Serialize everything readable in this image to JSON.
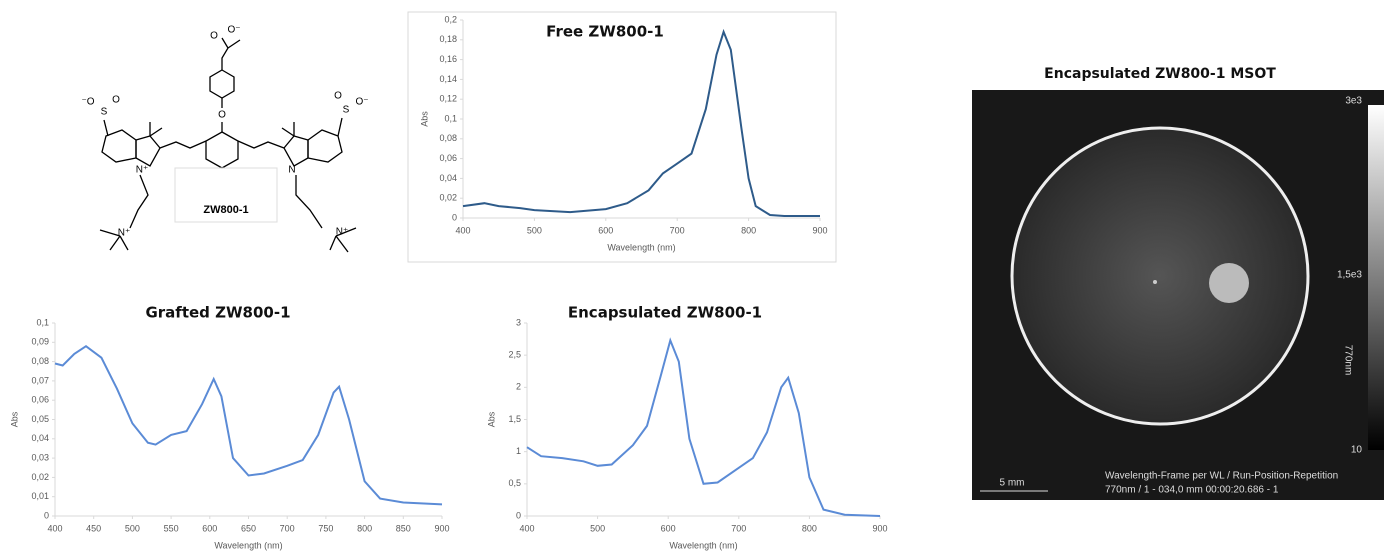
{
  "structure": {
    "labels": [
      "O⁻",
      "O",
      "O",
      "⁻O",
      "S",
      "O",
      "O",
      "S",
      "O⁻",
      "N⁺",
      "N",
      "N⁺",
      "ZW800-1"
    ]
  },
  "chart_data": [
    {
      "type": "line",
      "title": "Free ZW800-1",
      "x_label": "Wavelength (nm)",
      "y_label": "Abs",
      "color": "#2e5b8a",
      "x": [
        400,
        430,
        450,
        480,
        500,
        550,
        600,
        630,
        660,
        680,
        700,
        720,
        740,
        755,
        765,
        775,
        790,
        800,
        810,
        830,
        850,
        900
      ],
      "values": [
        0.012,
        0.015,
        0.012,
        0.01,
        0.008,
        0.006,
        0.009,
        0.015,
        0.028,
        0.045,
        0.055,
        0.065,
        0.11,
        0.165,
        0.188,
        0.17,
        0.09,
        0.04,
        0.012,
        0.003,
        0.002,
        0.002
      ],
      "xlim": [
        400,
        900
      ],
      "xticks": [
        400,
        500,
        600,
        700,
        800,
        900
      ],
      "ylim": [
        0,
        0.2
      ],
      "yticks": [
        0,
        {
          "value": 0.02,
          "label": "0,02"
        },
        {
          "value": 0.04,
          "label": "0,04"
        },
        {
          "value": 0.06,
          "label": "0,06"
        },
        {
          "value": 0.08,
          "label": "0,08"
        },
        {
          "value": 0.1,
          "label": "0,1"
        },
        {
          "value": 0.12,
          "label": "0,12"
        },
        {
          "value": 0.14,
          "label": "0,14"
        },
        {
          "value": 0.16,
          "label": "0,16"
        },
        {
          "value": 0.18,
          "label": "0,18"
        },
        {
          "value": 0.2,
          "label": "0,2"
        }
      ]
    },
    {
      "type": "line",
      "title": "Grafted ZW800-1",
      "x_label": "Wavelength (nm)",
      "y_label": "Abs",
      "color": "#5b8bd6",
      "x": [
        400,
        410,
        425,
        440,
        460,
        480,
        500,
        520,
        530,
        550,
        570,
        590,
        605,
        615,
        630,
        650,
        670,
        700,
        720,
        740,
        760,
        767,
        780,
        800,
        820,
        850,
        900
      ],
      "values": [
        0.079,
        0.078,
        0.084,
        0.088,
        0.082,
        0.066,
        0.048,
        0.038,
        0.037,
        0.042,
        0.044,
        0.058,
        0.071,
        0.062,
        0.03,
        0.021,
        0.022,
        0.026,
        0.029,
        0.042,
        0.064,
        0.067,
        0.05,
        0.018,
        0.009,
        0.007,
        0.006
      ],
      "xlim": [
        400,
        900
      ],
      "xticks": [
        400,
        450,
        500,
        550,
        600,
        650,
        700,
        750,
        800,
        850,
        900
      ],
      "ylim": [
        0,
        0.1
      ],
      "yticks": [
        0,
        {
          "value": 0.01,
          "label": "0,01"
        },
        {
          "value": 0.02,
          "label": "0,02"
        },
        {
          "value": 0.03,
          "label": "0,03"
        },
        {
          "value": 0.04,
          "label": "0,04"
        },
        {
          "value": 0.05,
          "label": "0,05"
        },
        {
          "value": 0.06,
          "label": "0,06"
        },
        {
          "value": 0.07,
          "label": "0,07"
        },
        {
          "value": 0.08,
          "label": "0,08"
        },
        {
          "value": 0.09,
          "label": "0,09"
        },
        {
          "value": 0.1,
          "label": "0,1"
        }
      ]
    },
    {
      "type": "line",
      "title": "Encapsulated ZW800-1",
      "x_label": "Wavelength (nm)",
      "y_label": "Abs",
      "color": "#5b8bd6",
      "x": [
        400,
        420,
        450,
        480,
        500,
        520,
        550,
        570,
        590,
        603,
        615,
        630,
        650,
        670,
        700,
        720,
        740,
        760,
        770,
        785,
        800,
        820,
        850,
        900
      ],
      "values": [
        1.07,
        0.93,
        0.9,
        0.85,
        0.78,
        0.8,
        1.1,
        1.4,
        2.2,
        2.73,
        2.4,
        1.2,
        0.5,
        0.52,
        0.75,
        0.9,
        1.3,
        2.0,
        2.15,
        1.6,
        0.6,
        0.1,
        0.02,
        0.0
      ],
      "xlim": [
        400,
        900
      ],
      "xticks": [
        400,
        500,
        600,
        700,
        800,
        900
      ],
      "ylim": [
        0,
        3
      ],
      "yticks": [
        0,
        {
          "value": 0.5,
          "label": "0,5"
        },
        1,
        {
          "value": 1.5,
          "label": "1,5"
        },
        2,
        {
          "value": 2.5,
          "label": "2,5"
        },
        3
      ]
    }
  ],
  "image": {
    "title": "Encapsulated ZW800-1 MSOT",
    "colorbar_labels": [
      "3e3",
      "1,5e3",
      "10"
    ],
    "axis_label": "770nm",
    "scale_label": "5 mm",
    "info": [
      "Wavelength-Frame per WL / Run-Position-Repetition",
      "770nm / 1 - 034,0 mm 00:00:20.686 - 1"
    ]
  }
}
